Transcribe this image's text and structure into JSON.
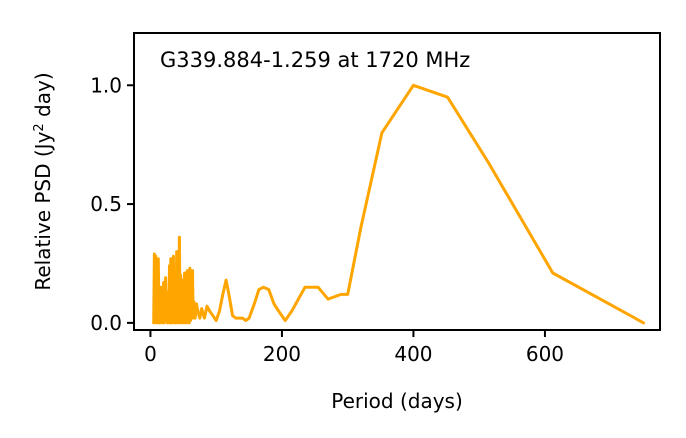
{
  "chart_data": {
    "type": "line",
    "annotation": "G339.884-1.259 at 1720 MHz",
    "xlabel": "Period (days)",
    "ylabel_main": "Relative PSD (Jy",
    "ylabel_sup": "2",
    "ylabel_tail": " day)",
    "xlim": [
      -25,
      775
    ],
    "ylim": [
      -0.03,
      1.22
    ],
    "xticks": [
      0,
      200,
      400,
      600
    ],
    "xtick_labels": [
      "0",
      "200",
      "400",
      "600"
    ],
    "yticks": [
      0.0,
      0.5,
      1.0
    ],
    "ytick_labels": [
      "0.0",
      "0.5",
      "1.0"
    ],
    "grid": false,
    "line_color": "#ffa500",
    "series": [
      {
        "x": [
          5,
          6,
          7,
          8,
          9,
          10,
          11,
          12,
          13,
          14,
          15,
          16,
          17,
          18,
          19,
          20,
          21,
          22,
          23,
          24,
          25,
          26,
          27,
          28,
          29,
          30,
          31,
          32,
          33,
          34,
          35,
          36,
          37,
          38,
          39,
          40,
          41,
          42,
          43,
          44,
          45,
          46,
          47,
          48,
          49,
          50,
          51,
          52,
          53,
          54,
          55,
          56,
          57,
          58,
          59,
          60,
          61,
          62,
          63,
          64,
          65,
          66,
          68,
          70,
          72,
          75,
          78,
          82,
          86,
          90,
          95,
          100,
          105,
          110,
          115,
          120,
          125,
          130,
          135,
          140,
          145,
          150,
          158,
          165,
          172,
          180,
          188,
          195,
          205,
          215,
          225,
          235,
          245,
          255,
          270,
          290,
          300,
          320,
          352,
          400,
          452,
          515,
          612,
          750
        ],
        "y": [
          0.0,
          0.29,
          0.02,
          0.28,
          0.0,
          0.2,
          0.06,
          0.27,
          0.0,
          0.1,
          0.01,
          0.15,
          0.0,
          0.12,
          0.02,
          0.17,
          0.0,
          0.08,
          0.19,
          0.01,
          0.13,
          0.0,
          0.1,
          0.02,
          0.24,
          0.0,
          0.27,
          0.0,
          0.15,
          0.03,
          0.28,
          0.0,
          0.1,
          0.22,
          0.0,
          0.3,
          0.02,
          0.15,
          0.0,
          0.36,
          0.01,
          0.2,
          0.0,
          0.18,
          0.02,
          0.12,
          0.0,
          0.21,
          0.03,
          0.1,
          0.0,
          0.22,
          0.02,
          0.14,
          0.0,
          0.23,
          0.01,
          0.1,
          0.03,
          0.22,
          0.02,
          0.09,
          0.02,
          0.08,
          0.05,
          0.02,
          0.06,
          0.02,
          0.07,
          0.05,
          0.03,
          0.01,
          0.05,
          0.12,
          0.18,
          0.11,
          0.03,
          0.02,
          0.02,
          0.02,
          0.01,
          0.02,
          0.08,
          0.14,
          0.15,
          0.14,
          0.08,
          0.05,
          0.01,
          0.05,
          0.1,
          0.15,
          0.15,
          0.15,
          0.1,
          0.12,
          0.12,
          0.4,
          0.8,
          1.0,
          0.95,
          0.67,
          0.21,
          0.0
        ]
      }
    ]
  }
}
